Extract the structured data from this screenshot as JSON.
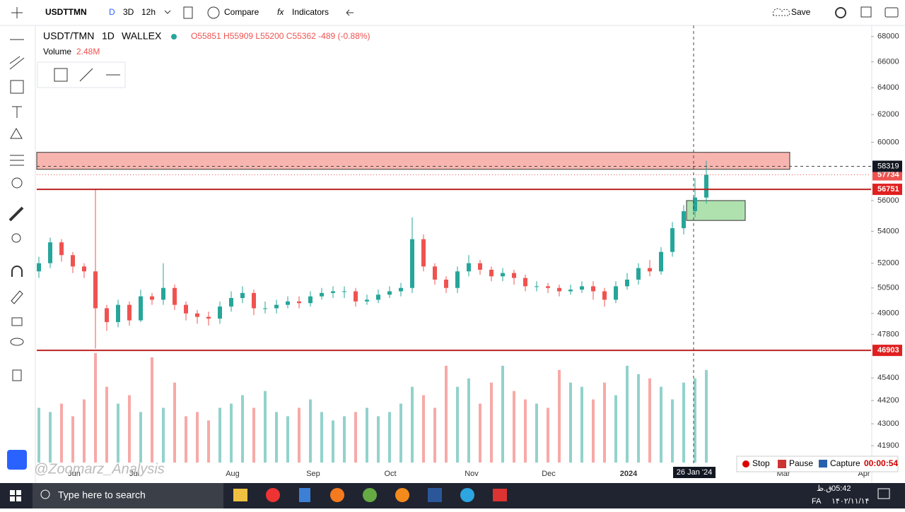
{
  "toolbar": {
    "symbol": "USDTTMN",
    "intervals": [
      "D",
      "3D",
      "12h"
    ],
    "compare": "Compare",
    "indicators": "Indicators",
    "save": "Save"
  },
  "legend": {
    "pair": "USDT/TMN",
    "interval": "1D",
    "exchange": "WALLEX",
    "ohlc": "O55851 H55909 L55200 C55362 -489 (-0.88%)",
    "volume_label": "Volume",
    "volume_value": "2.48M"
  },
  "chart_data": {
    "type": "candlestick",
    "log_scale": true,
    "ylim": [
      40900,
      68900
    ],
    "yticks": [
      68000,
      66000,
      64000,
      62000,
      60000,
      56000,
      54000,
      52000,
      50500,
      49000,
      47800,
      45400,
      44200,
      43000,
      41900
    ],
    "months": [
      "Jun",
      "Jul",
      "Aug",
      "Sep",
      "Oct",
      "Nov",
      "Dec",
      "2024",
      "Mar",
      "Apr"
    ],
    "up_color": "#26a69a",
    "down_color": "#ef5350",
    "candles": {
      "open": [
        51500,
        52000,
        53300,
        52500,
        51800,
        51500,
        49300,
        48500,
        49500,
        48600,
        50000,
        49800,
        50500,
        49500,
        49000,
        48800,
        48700,
        49400,
        49900,
        50200,
        49300,
        49300,
        49500,
        49700,
        49600,
        50000,
        50200,
        50300,
        50300,
        49700,
        49800,
        50100,
        50300,
        50500,
        53500,
        51800,
        51000,
        50500,
        51500,
        52000,
        51600,
        51200,
        51400,
        51100,
        50600,
        50600,
        50500,
        50300,
        50400,
        50600,
        50300,
        49800,
        50600,
        51000,
        51700,
        51500,
        52700,
        54200,
        55300,
        56200
      ],
      "high": [
        52400,
        53600,
        53500,
        52700,
        52000,
        56751,
        49500,
        49800,
        49700,
        50400,
        50200,
        52000,
        50700,
        49700,
        49200,
        49100,
        49700,
        50300,
        50600,
        50400,
        49700,
        49800,
        50000,
        50000,
        50300,
        50500,
        50600,
        50600,
        50500,
        50100,
        50400,
        50600,
        50800,
        54900,
        53800,
        52000,
        51200,
        51800,
        52500,
        52200,
        51800,
        51700,
        51600,
        51300,
        50900,
        50800,
        50700,
        50700,
        50900,
        50900,
        50500,
        50900,
        51400,
        52000,
        52200,
        53000,
        54600,
        55700,
        57500,
        58700
      ],
      "low": [
        51100,
        51700,
        52100,
        51400,
        51100,
        47000,
        48000,
        48200,
        48300,
        48500,
        49500,
        49500,
        49200,
        48600,
        48400,
        48300,
        48400,
        49100,
        49600,
        48900,
        49000,
        49000,
        49300,
        49300,
        49400,
        49800,
        49900,
        49900,
        49400,
        49500,
        49600,
        49900,
        50000,
        50200,
        51500,
        50700,
        50200,
        50200,
        51200,
        51300,
        50900,
        50900,
        50700,
        50300,
        50300,
        50200,
        50000,
        50100,
        50200,
        49800,
        49400,
        49600,
        50400,
        50700,
        51200,
        51300,
        52400,
        53800,
        54900,
        55800
      ],
      "close": [
        52000,
        53300,
        52500,
        51800,
        51500,
        49300,
        48500,
        49500,
        48600,
        50000,
        49800,
        50500,
        49500,
        49000,
        48800,
        48700,
        49400,
        49900,
        50200,
        49300,
        49300,
        49500,
        49700,
        49600,
        50000,
        50200,
        50300,
        50300,
        49700,
        49800,
        50100,
        50300,
        50500,
        53500,
        51800,
        51000,
        50500,
        51500,
        52000,
        51600,
        51200,
        51400,
        51100,
        50600,
        50600,
        50500,
        50300,
        50400,
        50600,
        50300,
        49800,
        50600,
        51000,
        51700,
        51500,
        52700,
        54200,
        55300,
        56200,
        57734
      ]
    },
    "volume": [
      1.3,
      1.2,
      1.4,
      1.1,
      1.5,
      2.6,
      1.8,
      1.4,
      1.6,
      1.2,
      2.5,
      1.3,
      1.9,
      1.1,
      1.2,
      1.0,
      1.3,
      1.4,
      1.6,
      1.3,
      1.7,
      1.2,
      1.1,
      1.3,
      1.5,
      1.2,
      1.0,
      1.1,
      1.2,
      1.3,
      1.1,
      1.2,
      1.4,
      1.8,
      1.6,
      1.3,
      2.3,
      1.8,
      2.0,
      1.4,
      1.9,
      2.3,
      1.7,
      1.5,
      1.4,
      1.3,
      2.2,
      1.9,
      1.8,
      1.5,
      1.9,
      1.6,
      2.3,
      2.1,
      2.0,
      1.8,
      1.5,
      1.9,
      2.0,
      2.2
    ],
    "red_zone": [
      58110,
      59290
    ],
    "green_zone": [
      54700,
      56000
    ],
    "lines": [
      56751,
      46903
    ],
    "last_price": 57734,
    "crosshair": {
      "price": 58319,
      "date": "26 Jan '24"
    }
  },
  "recorder": {
    "stop": "Stop",
    "pause": "Pause",
    "capture": "Capture",
    "time": "00:00:54"
  },
  "watermark": "@Zoomarz_Analysis",
  "taskbar": {
    "search": "Type here to search",
    "period": "ق.ظ",
    "time": "05:42",
    "lang": "FA",
    "date": "۱۴۰۲/۱۱/۱۴"
  }
}
